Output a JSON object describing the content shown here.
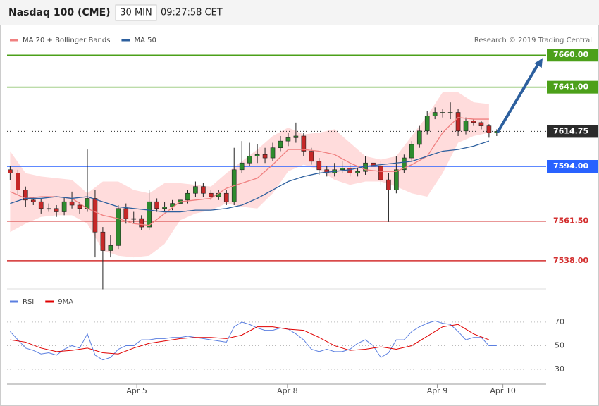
{
  "chart_data": [
    {
      "type": "candlestick",
      "title": "Nasdaq 100 (CME)",
      "interval": "30 MIN",
      "time": "09:27:58 CET",
      "credit": "Research © 2019 Trading Central",
      "xlim": [
        -0.4,
        69.4
      ],
      "ylim": [
        7521,
        7676
      ],
      "up_color": "#2e8b2e",
      "down_color": "#c62828",
      "candles": [
        [
          7592,
          7594,
          7586,
          7590
        ],
        [
          7590,
          7592,
          7577,
          7580
        ],
        [
          7580,
          7582,
          7570,
          7574
        ],
        [
          7574,
          7576,
          7571,
          7573
        ],
        [
          7573,
          7575,
          7566,
          7569
        ],
        [
          7569,
          7572,
          7567,
          7569
        ],
        [
          7569,
          7571,
          7564,
          7567
        ],
        [
          7567,
          7576,
          7565,
          7573
        ],
        [
          7573,
          7579,
          7569,
          7571
        ],
        [
          7571,
          7573,
          7566,
          7569
        ],
        [
          7569,
          7604,
          7567,
          7575
        ],
        [
          7575,
          7580,
          7540,
          7555
        ],
        [
          7555,
          7558,
          7521,
          7544
        ],
        [
          7544,
          7553,
          7540,
          7547
        ],
        [
          7547,
          7571,
          7545,
          7569
        ],
        [
          7569,
          7572,
          7560,
          7563
        ],
        [
          7563,
          7567,
          7560,
          7563
        ],
        [
          7563,
          7565,
          7556,
          7558
        ],
        [
          7558,
          7580,
          7556,
          7573
        ],
        [
          7573,
          7575,
          7567,
          7569
        ],
        [
          7569,
          7573,
          7567,
          7570
        ],
        [
          7570,
          7574,
          7568,
          7572
        ],
        [
          7572,
          7576,
          7570,
          7574
        ],
        [
          7574,
          7580,
          7572,
          7578
        ],
        [
          7578,
          7585,
          7576,
          7582
        ],
        [
          7582,
          7584,
          7576,
          7578
        ],
        [
          7578,
          7580,
          7574,
          7576
        ],
        [
          7576,
          7580,
          7574,
          7578
        ],
        [
          7578,
          7580,
          7571,
          7573
        ],
        [
          7573,
          7605,
          7571,
          7592
        ],
        [
          7592,
          7609,
          7590,
          7596
        ],
        [
          7596,
          7608,
          7594,
          7600
        ],
        [
          7600,
          7607,
          7596,
          7601
        ],
        [
          7601,
          7605,
          7596,
          7599
        ],
        [
          7599,
          7608,
          7597,
          7605
        ],
        [
          7605,
          7612,
          7603,
          7609
        ],
        [
          7609,
          7614,
          7606,
          7611
        ],
        [
          7611,
          7620,
          7608,
          7612
        ],
        [
          7612,
          7614,
          7600,
          7603
        ],
        [
          7603,
          7605,
          7595,
          7597
        ],
        [
          7597,
          7599,
          7589,
          7592
        ],
        [
          7592,
          7594,
          7588,
          7590
        ],
        [
          7590,
          7596,
          7588,
          7592
        ],
        [
          7592,
          7597,
          7590,
          7593
        ],
        [
          7593,
          7595,
          7588,
          7590
        ],
        [
          7590,
          7593,
          7588,
          7591
        ],
        [
          7591,
          7600,
          7589,
          7596
        ],
        [
          7596,
          7602,
          7592,
          7594
        ],
        [
          7594,
          7597,
          7583,
          7586
        ],
        [
          7586,
          7590,
          7561,
          7580
        ],
        [
          7580,
          7600,
          7578,
          7592
        ],
        [
          7592,
          7601,
          7590,
          7599
        ],
        [
          7599,
          7609,
          7597,
          7607
        ],
        [
          7607,
          7618,
          7605,
          7615
        ],
        [
          7615,
          7627,
          7613,
          7624
        ],
        [
          7624,
          7629,
          7622,
          7626
        ],
        [
          7626,
          7628,
          7623,
          7626
        ],
        [
          7626,
          7632,
          7622,
          7626
        ],
        [
          7626,
          7628,
          7612,
          7615
        ],
        [
          7615,
          7623,
          7613,
          7621
        ],
        [
          7621,
          7622,
          7618,
          7620
        ],
        [
          7620,
          7621,
          7616,
          7618
        ],
        [
          7618,
          7619,
          7611,
          7614
        ],
        [
          7614,
          7616,
          7612,
          7614.75
        ]
      ],
      "series": [
        {
          "name": "MA 20 + Bollinger Bands",
          "color": "#f08080",
          "band_color": "#ffd6d6",
          "x": [
            0,
            2,
            4,
            6,
            8,
            10,
            12,
            14,
            16,
            18,
            20,
            22,
            24,
            26,
            28,
            30,
            32,
            34,
            36,
            38,
            40,
            42,
            44,
            46,
            48,
            50,
            52,
            54,
            56,
            58,
            60,
            62
          ],
          "values": [
            7579,
            7575,
            7576,
            7576,
            7575,
            7569,
            7565,
            7563,
            7560,
            7559,
            7566,
            7573,
            7574,
            7575,
            7581,
            7584,
            7587,
            7595,
            7604,
            7604,
            7603,
            7601,
            7596,
            7592,
            7591,
            7591,
            7595,
            7600,
            7614,
            7623,
            7622,
            7622
          ],
          "upper": [
            7603,
            7590,
            7588,
            7587,
            7586,
            7578,
            7585,
            7585,
            7580,
            7578,
            7584,
            7584,
            7583,
            7582,
            7590,
            7597,
            7604,
            7612,
            7617,
            7613,
            7614,
            7616,
            7608,
            7600,
            7598,
            7600,
            7612,
            7624,
            7638,
            7638,
            7632,
            7631
          ],
          "lower": [
            7555,
            7560,
            7564,
            7565,
            7565,
            7560,
            7544,
            7541,
            7540,
            7541,
            7548,
            7562,
            7566,
            7568,
            7572,
            7570,
            7569,
            7578,
            7591,
            7595,
            7592,
            7586,
            7583,
            7585,
            7585,
            7582,
            7578,
            7576,
            7590,
            7608,
            7612,
            7614
          ]
        },
        {
          "name": "MA 50",
          "color": "#2c5f9e",
          "x": [
            0,
            2,
            4,
            6,
            8,
            10,
            12,
            14,
            16,
            18,
            20,
            22,
            24,
            26,
            28,
            30,
            32,
            34,
            36,
            38,
            40,
            42,
            44,
            46,
            48,
            50,
            52,
            54,
            56,
            58,
            60,
            62
          ],
          "values": [
            7572,
            7575,
            7575,
            7576,
            7575,
            7576,
            7573,
            7570,
            7569,
            7568,
            7567,
            7567,
            7568,
            7568,
            7569,
            7571,
            7575,
            7580,
            7585,
            7588,
            7590,
            7591,
            7592,
            7594,
            7595,
            7596,
            7597,
            7600,
            7603,
            7604,
            7606,
            7609
          ]
        }
      ],
      "levels": [
        {
          "value": 7660,
          "label": "7660.00",
          "color": "#4ca01a",
          "style": "solid",
          "box": true
        },
        {
          "value": 7641,
          "label": "7641.00",
          "color": "#4ca01a",
          "style": "solid",
          "box": true
        },
        {
          "value": 7614.75,
          "label": "7614.75",
          "color": "#2b2b2b",
          "style": "dotted",
          "box": true
        },
        {
          "value": 7594,
          "label": "7594.00",
          "color": "#2962ff",
          "style": "solid",
          "box": true
        },
        {
          "value": 7561.5,
          "label": "7561.50",
          "color": "#d32f2f",
          "style": "solid",
          "box": false
        },
        {
          "value": 7538,
          "label": "7538.00",
          "color": "#d32f2f",
          "style": "solid",
          "box": false
        }
      ],
      "forecast_target": 7660
    },
    {
      "type": "line",
      "xlim": [
        -0.4,
        69.4
      ],
      "ylim": [
        17.5,
        92
      ],
      "yticks": [
        30,
        50,
        70
      ],
      "grid": true,
      "xticks": [
        {
          "value": 16.4,
          "label": "Apr 5"
        },
        {
          "value": 35.9,
          "label": "Apr 8"
        },
        {
          "value": 55.3,
          "label": "Apr 9"
        },
        {
          "value": 63.8,
          "label": "Apr 10"
        }
      ],
      "series": [
        {
          "name": "RSI",
          "color": "#5b7fe0",
          "x": [
            0,
            1,
            2,
            3,
            4,
            5,
            6,
            7,
            8,
            9,
            10,
            11,
            12,
            13,
            14,
            15,
            16,
            17,
            18,
            19,
            20,
            21,
            22,
            23,
            24,
            25,
            26,
            27,
            28,
            29,
            30,
            31,
            32,
            33,
            34,
            35,
            36,
            37,
            38,
            39,
            40,
            41,
            42,
            43,
            44,
            45,
            46,
            47,
            48,
            49,
            50,
            51,
            52,
            53,
            54,
            55,
            56,
            57,
            58,
            59,
            60,
            61,
            62,
            63
          ],
          "values": [
            62,
            55,
            48,
            46,
            43,
            44,
            42,
            47,
            50,
            48,
            60,
            42,
            38,
            40,
            47,
            50,
            50,
            55,
            55,
            56,
            56,
            57,
            57,
            58,
            57,
            56,
            55,
            54,
            53,
            66,
            70,
            68,
            65,
            63,
            63,
            65,
            64,
            60,
            55,
            47,
            45,
            47,
            45,
            45,
            47,
            52,
            55,
            50,
            40,
            44,
            55,
            55,
            62,
            66,
            69,
            71,
            69,
            68,
            62,
            55,
            57,
            57,
            50,
            50
          ]
        },
        {
          "name": "9MA",
          "color": "#e00000",
          "x": [
            0,
            2,
            4,
            6,
            8,
            10,
            12,
            14,
            16,
            18,
            20,
            22,
            24,
            26,
            28,
            30,
            32,
            34,
            36,
            38,
            40,
            42,
            44,
            46,
            48,
            50,
            52,
            54,
            56,
            58,
            60,
            62
          ],
          "values": [
            55,
            53,
            48,
            45,
            46,
            48,
            44,
            43,
            48,
            52,
            54,
            56,
            57,
            57,
            56,
            59,
            66,
            66,
            64,
            63,
            57,
            50,
            46,
            47,
            49,
            47,
            50,
            58,
            66,
            68,
            60,
            55
          ]
        }
      ]
    }
  ]
}
